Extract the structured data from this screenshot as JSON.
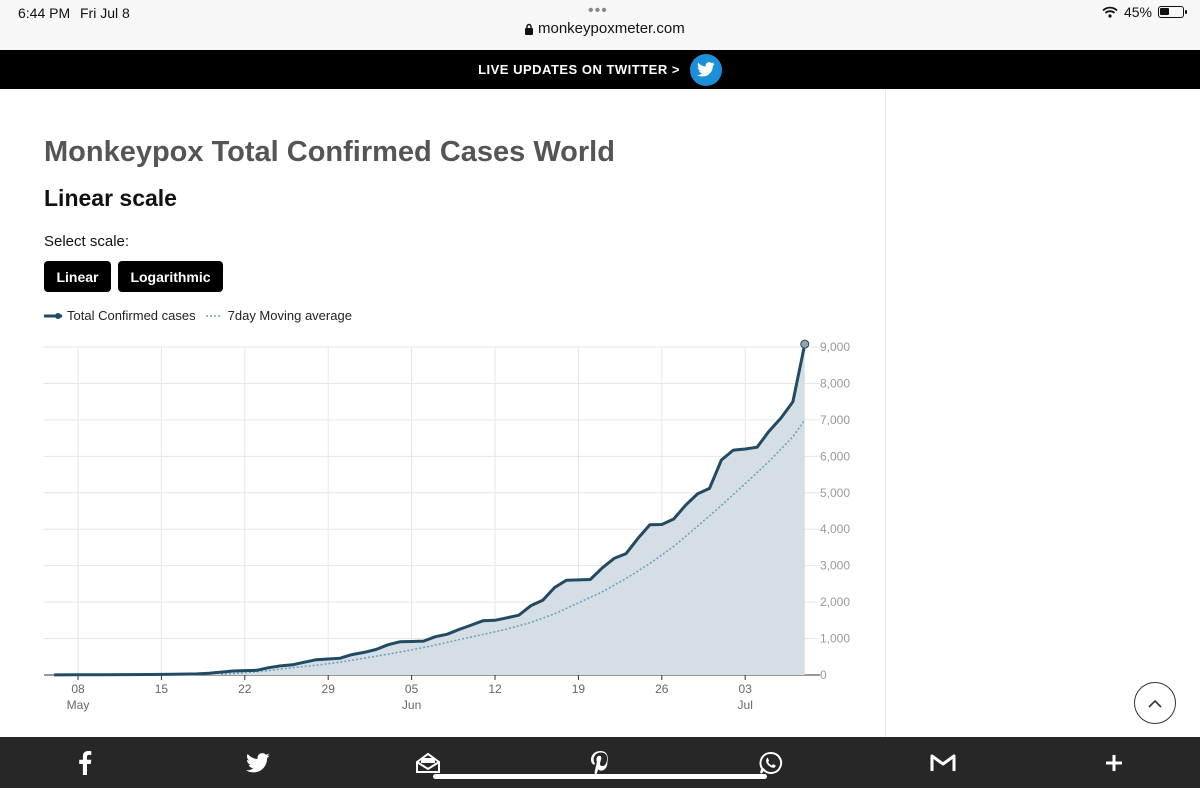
{
  "status_bar": {
    "time": "6:44 PM",
    "date": "Fri Jul 8",
    "dots": "•••",
    "url": "monkeypoxmeter.com",
    "battery": "45%",
    "battery_level": 0.45,
    "icons": [
      "lock-icon",
      "wifi-icon",
      "battery-icon"
    ]
  },
  "banner": {
    "label": "LIVE UPDATES ON TWITTER >",
    "icon": "twitter-icon",
    "accent": "#1d8fd8"
  },
  "page": {
    "title": "Monkeypox Total Confirmed Cases World",
    "subtitle": "Linear scale",
    "select_label": "Select scale:",
    "buttons": [
      "Linear",
      "Logarithmic"
    ]
  },
  "legend": {
    "items": [
      "Total Confirmed cases",
      "7day Moving average"
    ]
  },
  "chart_data": {
    "type": "area",
    "legend": [
      "Total Confirmed cases",
      "7day Moving average"
    ],
    "x_ticks": [
      {
        "day": "08",
        "month": "May"
      },
      {
        "day": "15",
        "month": ""
      },
      {
        "day": "22",
        "month": ""
      },
      {
        "day": "29",
        "month": ""
      },
      {
        "day": "05",
        "month": "Jun"
      },
      {
        "day": "12",
        "month": ""
      },
      {
        "day": "19",
        "month": ""
      },
      {
        "day": "26",
        "month": ""
      },
      {
        "day": "03",
        "month": "Jul"
      }
    ],
    "y_ticks": [
      "0",
      "1,000",
      "2,000",
      "3,000",
      "4,000",
      "5,000",
      "6,000",
      "7,000",
      "8,000",
      "9,000"
    ],
    "ylim": [
      0,
      9000
    ],
    "x_start": "2022-05-05",
    "x_end": "2022-07-08",
    "y_axis_position": "right",
    "grid": true,
    "colors": {
      "total": "#234a63",
      "fill": "#d5dee4",
      "avg": "#6ea4bf",
      "grid": "#e6e6e6",
      "axis_text": "#999999"
    },
    "series": [
      {
        "name": "Total Confirmed cases",
        "points": [
          [
            "2022-05-06",
            2
          ],
          [
            "2022-05-08",
            5
          ],
          [
            "2022-05-10",
            8
          ],
          [
            "2022-05-12",
            10
          ],
          [
            "2022-05-14",
            14
          ],
          [
            "2022-05-16",
            20
          ],
          [
            "2022-05-18",
            30
          ],
          [
            "2022-05-19",
            50
          ],
          [
            "2022-05-20",
            80
          ],
          [
            "2022-05-21",
            110
          ],
          [
            "2022-05-22",
            120
          ],
          [
            "2022-05-23",
            130
          ],
          [
            "2022-05-24",
            200
          ],
          [
            "2022-05-25",
            250
          ],
          [
            "2022-05-26",
            280
          ],
          [
            "2022-05-27",
            350
          ],
          [
            "2022-05-28",
            420
          ],
          [
            "2022-05-29",
            440
          ],
          [
            "2022-05-30",
            460
          ],
          [
            "2022-05-31",
            560
          ],
          [
            "2022-06-01",
            620
          ],
          [
            "2022-06-02",
            700
          ],
          [
            "2022-06-03",
            830
          ],
          [
            "2022-06-04",
            910
          ],
          [
            "2022-06-05",
            920
          ],
          [
            "2022-06-06",
            930
          ],
          [
            "2022-06-07",
            1050
          ],
          [
            "2022-06-08",
            1120
          ],
          [
            "2022-06-09",
            1250
          ],
          [
            "2022-06-10",
            1370
          ],
          [
            "2022-06-11",
            1490
          ],
          [
            "2022-06-12",
            1500
          ],
          [
            "2022-06-13",
            1570
          ],
          [
            "2022-06-14",
            1640
          ],
          [
            "2022-06-15",
            1900
          ],
          [
            "2022-06-16",
            2050
          ],
          [
            "2022-06-17",
            2400
          ],
          [
            "2022-06-18",
            2600
          ],
          [
            "2022-06-19",
            2610
          ],
          [
            "2022-06-20",
            2620
          ],
          [
            "2022-06-21",
            2940
          ],
          [
            "2022-06-22",
            3200
          ],
          [
            "2022-06-23",
            3330
          ],
          [
            "2022-06-24",
            3750
          ],
          [
            "2022-06-25",
            4120
          ],
          [
            "2022-06-26",
            4130
          ],
          [
            "2022-06-27",
            4280
          ],
          [
            "2022-06-28",
            4660
          ],
          [
            "2022-06-29",
            4970
          ],
          [
            "2022-06-30",
            5120
          ],
          [
            "2022-07-01",
            5900
          ],
          [
            "2022-07-02",
            6170
          ],
          [
            "2022-07-03",
            6200
          ],
          [
            "2022-07-04",
            6250
          ],
          [
            "2022-07-05",
            6690
          ],
          [
            "2022-07-06",
            7050
          ],
          [
            "2022-07-07",
            7500
          ],
          [
            "2022-07-08",
            9080
          ]
        ]
      },
      {
        "name": "7day Moving average",
        "points": [
          [
            "2022-05-20",
            20
          ],
          [
            "2022-05-22",
            60
          ],
          [
            "2022-05-24",
            120
          ],
          [
            "2022-05-26",
            200
          ],
          [
            "2022-05-28",
            270
          ],
          [
            "2022-05-30",
            350
          ],
          [
            "2022-06-01",
            460
          ],
          [
            "2022-06-03",
            570
          ],
          [
            "2022-06-05",
            690
          ],
          [
            "2022-06-07",
            820
          ],
          [
            "2022-06-09",
            970
          ],
          [
            "2022-06-11",
            1110
          ],
          [
            "2022-06-13",
            1260
          ],
          [
            "2022-06-15",
            1440
          ],
          [
            "2022-06-17",
            1680
          ],
          [
            "2022-06-19",
            1980
          ],
          [
            "2022-06-21",
            2280
          ],
          [
            "2022-06-23",
            2650
          ],
          [
            "2022-06-25",
            3060
          ],
          [
            "2022-06-27",
            3530
          ],
          [
            "2022-06-29",
            4080
          ],
          [
            "2022-07-01",
            4650
          ],
          [
            "2022-07-03",
            5250
          ],
          [
            "2022-07-05",
            5860
          ],
          [
            "2022-07-07",
            6540
          ],
          [
            "2022-07-08",
            7000
          ]
        ]
      }
    ]
  },
  "share_bar": {
    "icons": [
      "facebook-icon",
      "twitter-icon",
      "email-icon",
      "pinterest-icon",
      "whatsapp-icon",
      "gmail-icon",
      "plus-icon"
    ]
  }
}
